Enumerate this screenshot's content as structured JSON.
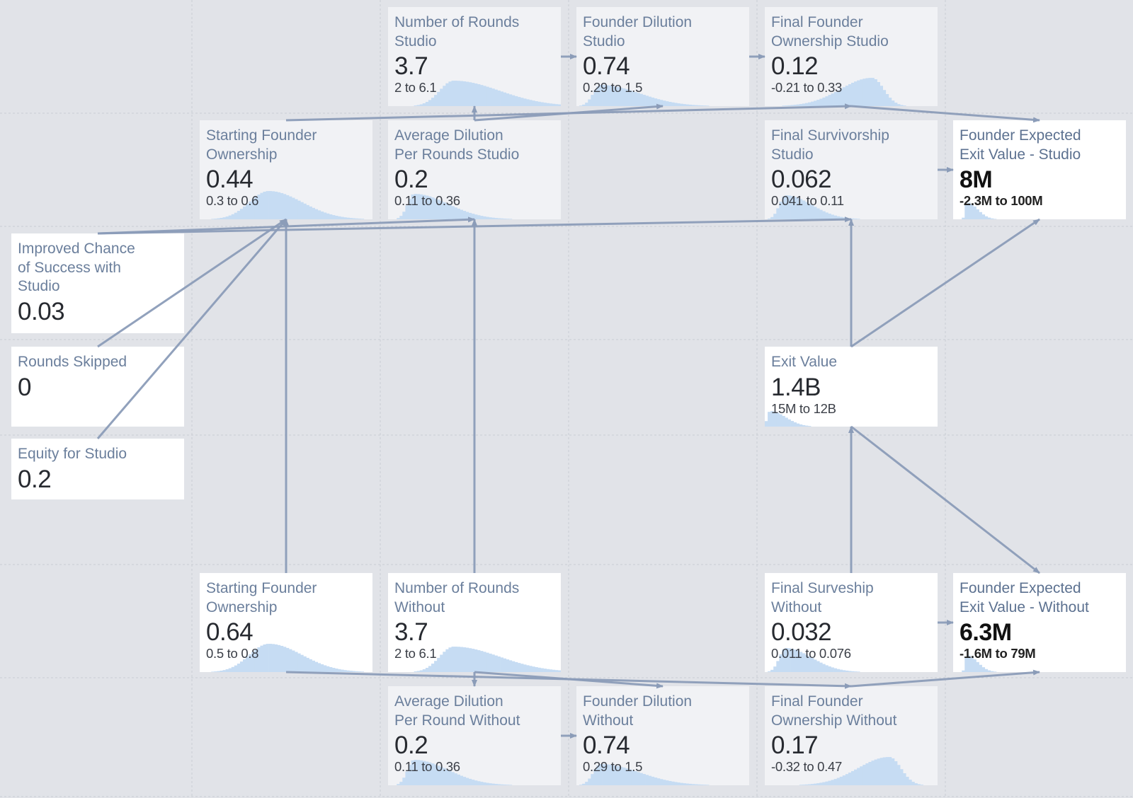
{
  "diagram": {
    "nodes": [
      {
        "id": "rounds_studio",
        "kind": "computed",
        "title": [
          "Number of Rounds",
          "Studio"
        ],
        "value": "3.7",
        "range": "2 to 6.1",
        "dist": {
          "peak": 0.38,
          "width": 0.12,
          "skew": 2.2,
          "scale": 0.9
        }
      },
      {
        "id": "dilution_studio",
        "kind": "computed",
        "title": [
          "Founder Dilution",
          "Studio"
        ],
        "value": "0.74",
        "range": "0.29 to 1.5",
        "dist": {
          "peak": 0.14,
          "width": 0.08,
          "skew": 2.8,
          "scale": 0.75
        }
      },
      {
        "id": "final_own_studio",
        "kind": "computed",
        "title": [
          "Final Founder",
          "Ownership Studio"
        ],
        "value": "0.12",
        "range": "-0.21 to 0.33",
        "dist": {
          "peak": 0.62,
          "width": 0.09,
          "skew": -2.0,
          "scale": 1.0
        }
      },
      {
        "id": "start_own_studio",
        "kind": "computed",
        "title": [
          "Starting Founder",
          "Ownership"
        ],
        "value": "0.44",
        "range": "0.3 to 0.6",
        "dist": {
          "peak": 0.4,
          "width": 0.12,
          "skew": 1.6,
          "scale": 1.0
        }
      },
      {
        "id": "avg_dil_studio",
        "kind": "computed",
        "title": [
          "Average Dilution",
          "Per Rounds Studio"
        ],
        "value": "0.2",
        "range": "0.11 to 0.36",
        "dist": {
          "peak": 0.15,
          "width": 0.07,
          "skew": 2.8,
          "scale": 0.9
        }
      },
      {
        "id": "final_surv_studio",
        "kind": "computed",
        "title": [
          "Final Survivorship",
          "Studio"
        ],
        "value": "0.062",
        "range": "0.041 to 0.11",
        "dist": {
          "peak": 0.12,
          "width": 0.06,
          "skew": 2.5,
          "scale": 0.85
        }
      },
      {
        "id": "fev_studio",
        "kind": "output",
        "title": [
          "Founder Expected",
          "Exit Value - Studio"
        ],
        "value": "8M",
        "range": "-2.3M to 100M",
        "dist": {
          "peak": 0.08,
          "width": 0.02,
          "skew": 3.0,
          "scale": 0.6
        }
      },
      {
        "id": "improved_chance",
        "kind": "input",
        "title": [
          "Improved Chance",
          "of Success with",
          "Studio"
        ],
        "value": "0.03"
      },
      {
        "id": "rounds_skipped",
        "kind": "input",
        "title": [
          "Rounds Skipped"
        ],
        "value": "0"
      },
      {
        "id": "exit_value",
        "kind": "input",
        "title": [
          "Exit Value"
        ],
        "value": "1.4B",
        "range": "15M to 12B",
        "dist": {
          "peak": 0.03,
          "width": 0.03,
          "skew": 3.0,
          "scale": 0.55
        }
      },
      {
        "id": "equity_studio",
        "kind": "input",
        "title": [
          "Equity for Studio"
        ],
        "value": "0.2"
      },
      {
        "id": "start_own_without",
        "kind": "input",
        "title": [
          "Starting Founder",
          "Ownership"
        ],
        "value": "0.64",
        "range": "0.5 to 0.8",
        "dist": {
          "peak": 0.4,
          "width": 0.12,
          "skew": 1.6,
          "scale": 1.0
        }
      },
      {
        "id": "rounds_without",
        "kind": "input",
        "title": [
          "Number of Rounds",
          "Without"
        ],
        "value": "3.7",
        "range": "2 to 6.1",
        "dist": {
          "peak": 0.38,
          "width": 0.12,
          "skew": 2.2,
          "scale": 0.9
        }
      },
      {
        "id": "final_surv_without",
        "kind": "input",
        "title": [
          "Final Surveship",
          "Without"
        ],
        "value": "0.032",
        "range": "0.011 to 0.076",
        "dist": {
          "peak": 0.12,
          "width": 0.06,
          "skew": 2.5,
          "scale": 0.85
        }
      },
      {
        "id": "fev_without",
        "kind": "output",
        "title": [
          "Founder Expected",
          "Exit Value - Without"
        ],
        "value": "6.3M",
        "range": "-1.6M to 79M",
        "dist": {
          "peak": 0.08,
          "width": 0.02,
          "skew": 3.0,
          "scale": 0.6
        }
      },
      {
        "id": "avg_dil_without",
        "kind": "computed",
        "title": [
          "Average Dilution",
          "Per Round Without"
        ],
        "value": "0.2",
        "range": "0.11 to 0.36",
        "dist": {
          "peak": 0.15,
          "width": 0.07,
          "skew": 2.8,
          "scale": 0.9
        }
      },
      {
        "id": "dilution_without",
        "kind": "computed",
        "title": [
          "Founder Dilution",
          "Without"
        ],
        "value": "0.74",
        "range": "0.29 to 1.5",
        "dist": {
          "peak": 0.14,
          "width": 0.08,
          "skew": 2.8,
          "scale": 0.75
        }
      },
      {
        "id": "final_own_without",
        "kind": "computed",
        "title": [
          "Final Founder",
          "Ownership Without"
        ],
        "value": "0.17",
        "range": "-0.32 to 0.47",
        "dist": {
          "peak": 0.72,
          "width": 0.09,
          "skew": -2.0,
          "scale": 1.0
        }
      }
    ],
    "edges": [
      [
        "rounds_studio",
        "dilution_studio"
      ],
      [
        "dilution_studio",
        "final_own_studio"
      ],
      [
        "avg_dil_studio",
        "dilution_studio"
      ],
      [
        "avg_dil_studio",
        "rounds_studio"
      ],
      [
        "start_own_studio",
        "final_own_studio"
      ],
      [
        "final_own_studio",
        "fev_studio"
      ],
      [
        "final_surv_studio",
        "fev_studio"
      ],
      [
        "improved_chance",
        "final_surv_studio"
      ],
      [
        "improved_chance",
        "avg_dil_studio"
      ],
      [
        "rounds_skipped",
        "start_own_studio"
      ],
      [
        "equity_studio",
        "start_own_studio"
      ],
      [
        "start_own_without",
        "start_own_studio"
      ],
      [
        "rounds_without",
        "avg_dil_studio"
      ],
      [
        "exit_value",
        "final_surv_studio"
      ],
      [
        "exit_value",
        "fev_studio"
      ],
      [
        "exit_value",
        "fev_without"
      ],
      [
        "final_surv_without",
        "exit_value"
      ],
      [
        "final_surv_without",
        "fev_without"
      ],
      [
        "start_own_without",
        "final_own_without"
      ],
      [
        "rounds_without",
        "avg_dil_without"
      ],
      [
        "rounds_without",
        "dilution_without"
      ],
      [
        "avg_dil_without",
        "dilution_without"
      ],
      [
        "final_own_without",
        "fev_without"
      ]
    ]
  }
}
